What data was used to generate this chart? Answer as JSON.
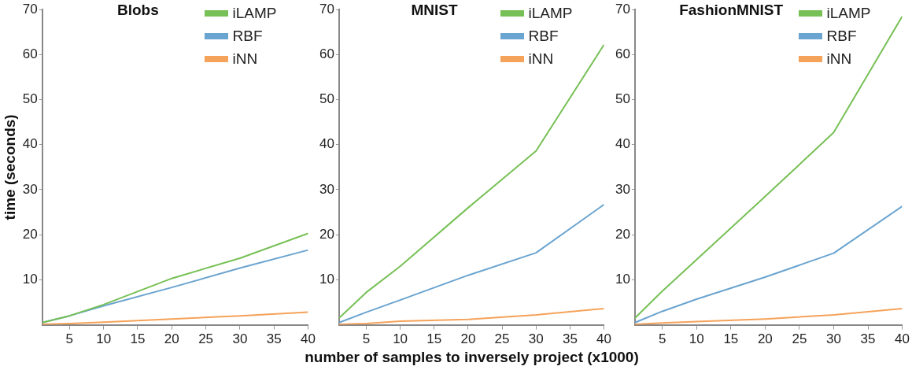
{
  "chart_data": [
    {
      "type": "line",
      "title": "Blobs",
      "ylabel": "time (seconds)",
      "x": [
        1,
        5,
        10,
        20,
        30,
        40
      ],
      "xlim": [
        1,
        40
      ],
      "xticks": [
        5,
        10,
        15,
        20,
        25,
        30,
        35,
        40
      ],
      "ylim": [
        0,
        70
      ],
      "yticks": [
        10,
        20,
        30,
        40,
        50,
        60,
        70
      ],
      "grid": false,
      "legend": "top right",
      "marker": "none",
      "line_style": "solid",
      "series": [
        {
          "name": "iLAMP",
          "color": "#77c056",
          "values": [
            0.5,
            2,
            4.5,
            10.3,
            14.8,
            20.3
          ]
        },
        {
          "name": "RBF",
          "color": "#6aa4d0",
          "values": [
            0.5,
            2,
            4.2,
            8.3,
            12.6,
            16.6
          ]
        },
        {
          "name": "iNN",
          "color": "#f5a25a",
          "values": [
            0.1,
            0.3,
            0.6,
            1.3,
            2,
            2.8
          ]
        }
      ]
    },
    {
      "type": "line",
      "title": "MNIST",
      "xlabel": "number of samples to inversely project (x1000)",
      "x": [
        1,
        5,
        10,
        20,
        30,
        40
      ],
      "xlim": [
        1,
        40
      ],
      "xticks": [
        5,
        10,
        15,
        20,
        25,
        30,
        35,
        40
      ],
      "ylim": [
        0,
        70
      ],
      "yticks": [
        10,
        20,
        30,
        40,
        50,
        60,
        70
      ],
      "grid": false,
      "legend": "top right",
      "marker": "none",
      "line_style": "solid",
      "series": [
        {
          "name": "iLAMP",
          "color": "#77c056",
          "values": [
            1.5,
            7.2,
            13,
            26,
            38.6,
            62.2
          ]
        },
        {
          "name": "RBF",
          "color": "#6aa4d0",
          "values": [
            0.5,
            2.8,
            5.5,
            11,
            16,
            26.7
          ]
        },
        {
          "name": "iNN",
          "color": "#f5a25a",
          "values": [
            0.1,
            0.3,
            0.8,
            1.2,
            2.2,
            3.6
          ]
        }
      ]
    },
    {
      "type": "line",
      "title": "FashionMNIST",
      "x": [
        1,
        5,
        10,
        20,
        30,
        40
      ],
      "xlim": [
        1,
        40
      ],
      "xticks": [
        5,
        10,
        15,
        20,
        25,
        30,
        35,
        40
      ],
      "ylim": [
        0,
        70
      ],
      "yticks": [
        10,
        20,
        30,
        40,
        50,
        60,
        70
      ],
      "grid": false,
      "legend": "top right",
      "marker": "none",
      "line_style": "solid",
      "series": [
        {
          "name": "iLAMP",
          "color": "#77c056",
          "values": [
            1.5,
            7.5,
            14.5,
            28.5,
            42.7,
            68.5
          ]
        },
        {
          "name": "RBF",
          "color": "#6aa4d0",
          "values": [
            0.5,
            3,
            5.7,
            10.6,
            15.9,
            26.3
          ]
        },
        {
          "name": "iNN",
          "color": "#f5a25a",
          "values": [
            0.1,
            0.4,
            0.7,
            1.3,
            2.2,
            3.6
          ]
        }
      ]
    }
  ]
}
